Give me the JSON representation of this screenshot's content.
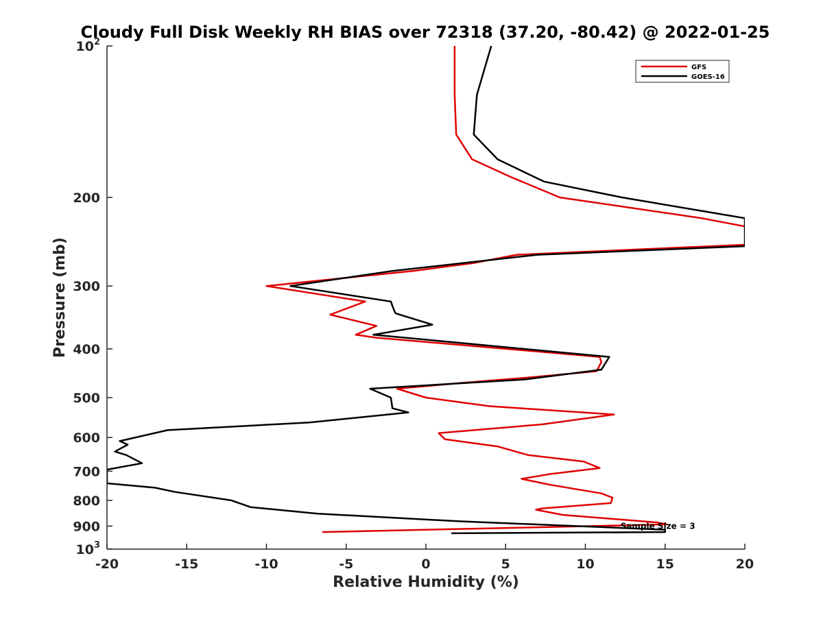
{
  "chart_data": {
    "type": "line",
    "title": "Cloudy Full Disk Weekly RH BIAS over 72318 (37.20, -80.42) @ 2022-01-25",
    "xlabel": "Relative Humidity (%)",
    "ylabel": "Pressure (mb)",
    "xlim": [
      -20,
      20
    ],
    "ylim": [
      100,
      1000
    ],
    "yscale": "log",
    "y_reversed": true,
    "grid": false,
    "legend_position": "top-right",
    "x_ticks": [
      "-20",
      "-15",
      "-10",
      "-5",
      "0",
      "5",
      "10",
      "15",
      "20"
    ],
    "y_ticks": [
      {
        "value": 100,
        "base": "10",
        "sup": "2"
      },
      {
        "value": 200,
        "base": "200",
        "sup": ""
      },
      {
        "value": 300,
        "base": "300",
        "sup": ""
      },
      {
        "value": 400,
        "base": "400",
        "sup": ""
      },
      {
        "value": 500,
        "base": "500",
        "sup": ""
      },
      {
        "value": 600,
        "base": "600",
        "sup": ""
      },
      {
        "value": 700,
        "base": "700",
        "sup": ""
      },
      {
        "value": 800,
        "base": "800",
        "sup": ""
      },
      {
        "value": 900,
        "base": "900",
        "sup": ""
      },
      {
        "value": 1000,
        "base": "10",
        "sup": "3"
      }
    ],
    "annotation": {
      "text": "Sample Size = 3",
      "x": 12.2,
      "y": 900
    },
    "series": [
      {
        "name": "GFS",
        "color": "#e00000",
        "points": [
          [
            1.8,
            100
          ],
          [
            1.8,
            125
          ],
          [
            1.9,
            150
          ],
          [
            2.9,
            168
          ],
          [
            5.3,
            182
          ],
          [
            8.4,
            200
          ],
          [
            17.3,
            220
          ],
          [
            20.5,
            230
          ],
          [
            20.5,
            248
          ],
          [
            5.7,
            260
          ],
          [
            3.0,
            270
          ],
          [
            -0.8,
            280
          ],
          [
            -10.0,
            300
          ],
          [
            -3.8,
            322
          ],
          [
            -6.0,
            342
          ],
          [
            -3.1,
            360
          ],
          [
            -4.4,
            375
          ],
          [
            -3.1,
            380
          ],
          [
            10.9,
            415
          ],
          [
            11.0,
            425
          ],
          [
            10.7,
            443
          ],
          [
            6.4,
            456
          ],
          [
            2.0,
            468
          ],
          [
            -1.8,
            480
          ],
          [
            0.0,
            500
          ],
          [
            4.0,
            520
          ],
          [
            11.8,
            540
          ],
          [
            7.3,
            565
          ],
          [
            0.8,
            588
          ],
          [
            1.2,
            605
          ],
          [
            4.5,
            625
          ],
          [
            6.4,
            650
          ],
          [
            9.9,
            670
          ],
          [
            10.9,
            690
          ],
          [
            7.7,
            710
          ],
          [
            6.0,
            725
          ],
          [
            7.8,
            745
          ],
          [
            11.0,
            775
          ],
          [
            11.7,
            790
          ],
          [
            11.6,
            810
          ],
          [
            7.3,
            830
          ],
          [
            6.9,
            835
          ],
          [
            8.6,
            855
          ],
          [
            14.5,
            885
          ],
          [
            15.1,
            893
          ],
          [
            -6.5,
            925
          ]
        ]
      },
      {
        "name": "GOES-16",
        "color": "#000000",
        "points": [
          [
            4.1,
            100
          ],
          [
            3.2,
            125
          ],
          [
            3.0,
            150
          ],
          [
            4.5,
            168
          ],
          [
            7.4,
            186
          ],
          [
            12.3,
            200
          ],
          [
            20.0,
            220
          ],
          [
            20.0,
            250
          ],
          [
            7.0,
            260
          ],
          [
            -2.1,
            280
          ],
          [
            -8.5,
            300
          ],
          [
            -2.2,
            322
          ],
          [
            -2.0,
            335
          ],
          [
            -1.9,
            340
          ],
          [
            0.4,
            358
          ],
          [
            -3.3,
            375
          ],
          [
            11.5,
            415
          ],
          [
            11.0,
            440
          ],
          [
            6.2,
            460
          ],
          [
            -3.5,
            480
          ],
          [
            -2.2,
            500
          ],
          [
            -2.1,
            525
          ],
          [
            -1.1,
            535
          ],
          [
            -7.3,
            560
          ],
          [
            -16.2,
            580
          ],
          [
            -19.2,
            610
          ],
          [
            -18.7,
            620
          ],
          [
            -19.5,
            640
          ],
          [
            -18.8,
            650
          ],
          [
            -17.8,
            675
          ],
          [
            -20.0,
            695
          ],
          [
            -20.0,
            740
          ],
          [
            -17.0,
            755
          ],
          [
            -15.7,
            770
          ],
          [
            -12.2,
            800
          ],
          [
            -11.0,
            825
          ],
          [
            -6.8,
            850
          ],
          [
            2.0,
            880
          ],
          [
            15.0,
            915
          ],
          [
            15.0,
            925
          ],
          [
            1.6,
            930
          ]
        ]
      }
    ]
  }
}
